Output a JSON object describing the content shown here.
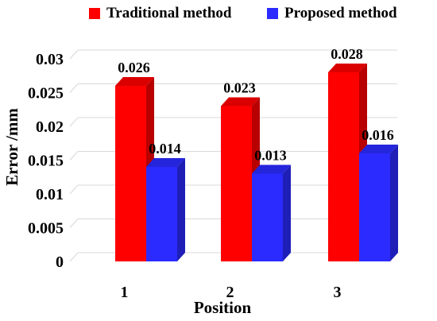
{
  "colors": {
    "traditional": "#ff0000",
    "proposed": "#2b2bff",
    "grid": "#d9d9d9"
  },
  "chart_data": {
    "type": "bar",
    "xlabel": "Position",
    "ylabel": "Error /mm",
    "categories": [
      "1",
      "2",
      "3"
    ],
    "ylim": [
      0,
      0.03
    ],
    "y_ticks": [
      "0",
      "0.005",
      "0.01",
      "0.015",
      "0.02",
      "0.025",
      "0.03"
    ],
    "grid": true,
    "legend_position": "top",
    "series": [
      {
        "name": "Traditional method",
        "values": [
          0.026,
          0.023,
          0.028
        ],
        "labels": [
          "0.026",
          "0.023",
          "0.028"
        ]
      },
      {
        "name": "Proposed method",
        "values": [
          0.014,
          0.013,
          0.016
        ],
        "labels": [
          "0.014",
          "0.013",
          "0.016"
        ]
      }
    ]
  }
}
